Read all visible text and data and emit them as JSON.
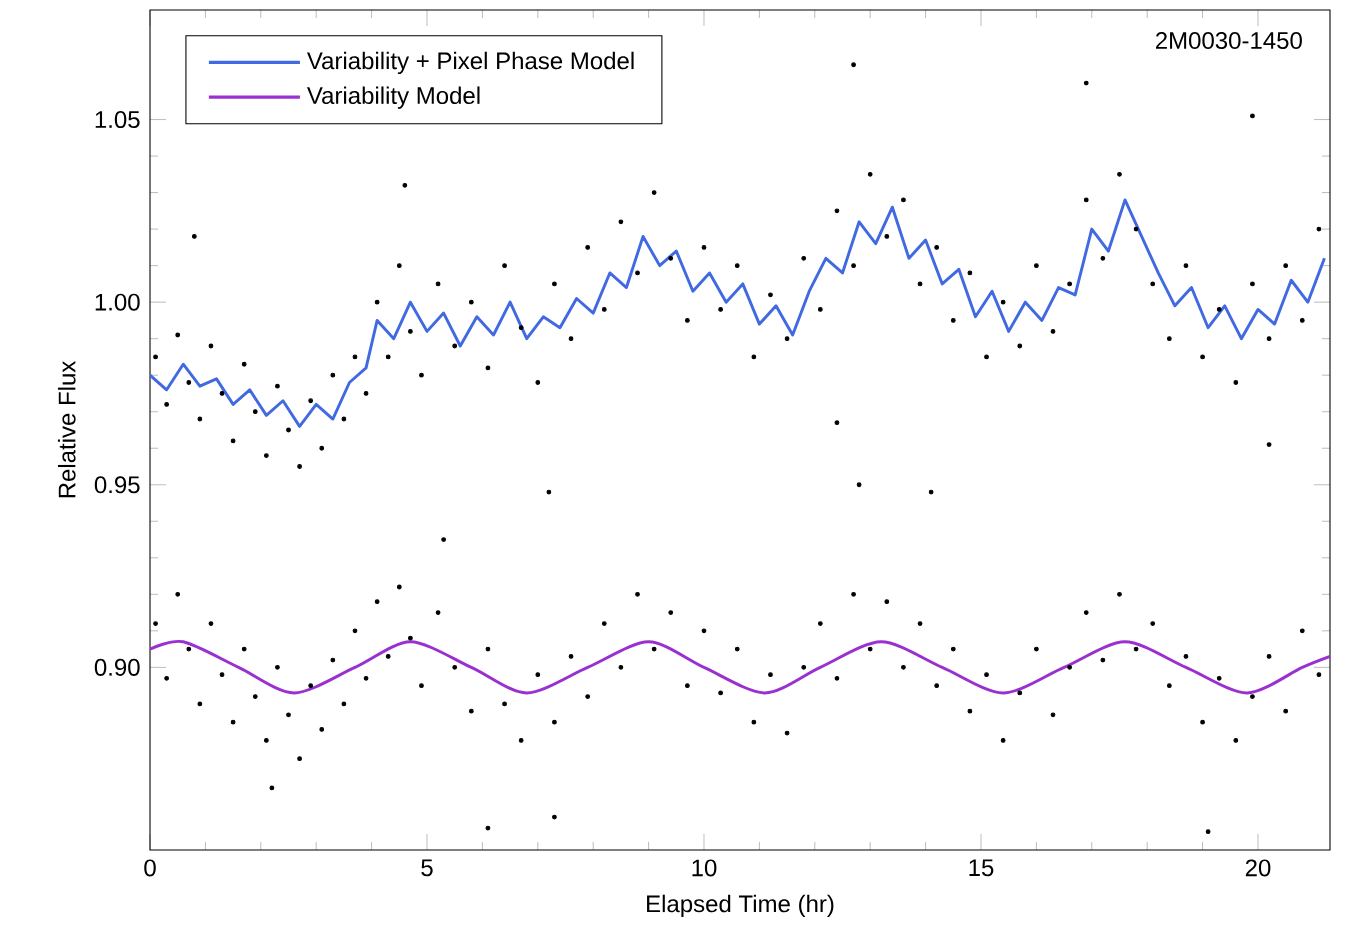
{
  "chart_data": {
    "type": "scatter",
    "xlabel": "Elapsed Time (hr)",
    "ylabel": "Relative Flux",
    "annotations": [
      "2M0030-1450"
    ],
    "xlim": [
      0,
      21.3
    ],
    "ylim": [
      0.85,
      1.08
    ],
    "xticks": [
      0,
      5,
      10,
      15,
      20
    ],
    "yticks": [
      {
        "value": 0.9,
        "label": "0.90"
      },
      {
        "value": 0.95,
        "label": "0.95"
      },
      {
        "value": 1.0,
        "label": "1.00"
      },
      {
        "value": 1.05,
        "label": "1.05"
      }
    ],
    "legend": "top left",
    "grid": false,
    "series": [
      {
        "color": "#000000",
        "marker": "circle",
        "x": [
          0.1,
          0.3,
          0.5,
          0.7,
          0.9,
          1.1,
          1.3,
          1.5,
          1.7,
          1.9,
          2.1,
          2.3,
          2.5,
          2.7,
          2.9,
          3.1,
          3.3,
          3.5,
          3.7,
          3.9,
          4.1,
          4.3,
          4.5,
          4.7,
          4.9,
          5.2,
          5.5,
          5.8,
          6.1,
          6.4,
          6.7,
          7.0,
          7.3,
          7.6,
          7.9,
          8.2,
          8.5,
          8.8,
          9.1,
          9.4,
          9.7,
          10.0,
          10.3,
          10.6,
          10.9,
          11.2,
          11.5,
          11.8,
          12.1,
          12.4,
          12.7,
          13.0,
          13.3,
          13.6,
          13.9,
          14.2,
          14.5,
          14.8,
          15.1,
          15.4,
          15.7,
          16.0,
          16.3,
          16.6,
          16.9,
          17.2,
          17.5,
          17.8,
          18.1,
          18.4,
          18.7,
          19.0,
          19.3,
          19.6,
          19.9,
          20.2,
          20.5,
          20.8,
          21.1,
          0.8,
          4.6,
          12.7,
          16.9,
          19.9,
          12.4,
          12.8,
          20.2
        ],
        "values": [
          0.985,
          0.972,
          0.991,
          0.978,
          0.968,
          0.988,
          0.975,
          0.962,
          0.983,
          0.97,
          0.958,
          0.977,
          0.965,
          0.955,
          0.973,
          0.96,
          0.98,
          0.968,
          0.985,
          0.975,
          1.0,
          0.985,
          1.01,
          0.992,
          0.98,
          1.005,
          0.988,
          1.0,
          0.982,
          1.01,
          0.993,
          0.978,
          1.005,
          0.99,
          1.015,
          0.998,
          1.022,
          1.008,
          1.03,
          1.012,
          0.995,
          1.015,
          0.998,
          1.01,
          0.985,
          1.002,
          0.99,
          1.012,
          0.998,
          1.025,
          1.01,
          1.035,
          1.018,
          1.028,
          1.005,
          1.015,
          0.995,
          1.008,
          0.985,
          1.0,
          0.988,
          1.01,
          0.992,
          1.005,
          1.028,
          1.012,
          1.035,
          1.02,
          1.005,
          0.99,
          1.01,
          0.985,
          0.998,
          0.978,
          1.005,
          0.99,
          1.01,
          0.995,
          1.02,
          1.018,
          1.032,
          1.065,
          1.06,
          1.051,
          0.967,
          0.95,
          0.961
        ]
      },
      {
        "color": "#000000",
        "marker": "circle",
        "x": [
          0.1,
          0.3,
          0.5,
          0.7,
          0.9,
          1.1,
          1.3,
          1.5,
          1.7,
          1.9,
          2.1,
          2.3,
          2.5,
          2.7,
          2.9,
          3.1,
          3.3,
          3.5,
          3.7,
          3.9,
          4.1,
          4.3,
          4.5,
          4.7,
          4.9,
          5.2,
          5.5,
          5.8,
          6.1,
          6.4,
          6.7,
          7.0,
          7.3,
          7.6,
          7.9,
          8.2,
          8.5,
          8.8,
          9.1,
          9.4,
          9.7,
          10.0,
          10.3,
          10.6,
          10.9,
          11.2,
          11.5,
          11.8,
          12.1,
          12.4,
          12.7,
          13.0,
          13.3,
          13.6,
          13.9,
          14.2,
          14.5,
          14.8,
          15.1,
          15.4,
          15.7,
          16.0,
          16.3,
          16.6,
          16.9,
          17.2,
          17.5,
          17.8,
          18.1,
          18.4,
          18.7,
          19.0,
          19.3,
          19.6,
          19.9,
          20.2,
          20.5,
          20.8,
          21.1,
          2.2,
          6.1,
          7.3,
          7.2,
          5.3,
          14.1,
          19.1
        ],
        "values": [
          0.912,
          0.897,
          0.92,
          0.905,
          0.89,
          0.912,
          0.898,
          0.885,
          0.905,
          0.892,
          0.88,
          0.9,
          0.887,
          0.875,
          0.895,
          0.883,
          0.902,
          0.89,
          0.91,
          0.897,
          0.918,
          0.903,
          0.922,
          0.908,
          0.895,
          0.915,
          0.9,
          0.888,
          0.905,
          0.89,
          0.88,
          0.898,
          0.885,
          0.903,
          0.892,
          0.912,
          0.9,
          0.92,
          0.905,
          0.915,
          0.895,
          0.91,
          0.893,
          0.905,
          0.885,
          0.898,
          0.882,
          0.9,
          0.912,
          0.897,
          0.92,
          0.905,
          0.918,
          0.9,
          0.912,
          0.895,
          0.905,
          0.888,
          0.898,
          0.88,
          0.893,
          0.905,
          0.887,
          0.9,
          0.915,
          0.902,
          0.92,
          0.905,
          0.912,
          0.895,
          0.903,
          0.885,
          0.897,
          0.88,
          0.892,
          0.903,
          0.888,
          0.91,
          0.898,
          0.867,
          0.856,
          0.859,
          0.948,
          0.935,
          0.948,
          0.855
        ]
      },
      {
        "type": "line",
        "name": "Variability + Pixel Phase Model",
        "color": "#4169e1",
        "marker": "none",
        "line_style": "solid",
        "x": [
          0,
          0.3,
          0.6,
          0.9,
          1.2,
          1.5,
          1.8,
          2.1,
          2.4,
          2.7,
          3.0,
          3.3,
          3.6,
          3.9,
          4.1,
          4.4,
          4.7,
          5.0,
          5.3,
          5.6,
          5.9,
          6.2,
          6.5,
          6.8,
          7.1,
          7.4,
          7.7,
          8.0,
          8.3,
          8.6,
          8.9,
          9.2,
          9.5,
          9.8,
          10.1,
          10.4,
          10.7,
          11.0,
          11.3,
          11.6,
          11.9,
          12.2,
          12.5,
          12.8,
          13.1,
          13.4,
          13.7,
          14.0,
          14.3,
          14.6,
          14.9,
          15.2,
          15.5,
          15.8,
          16.1,
          16.4,
          16.7,
          17.0,
          17.3,
          17.6,
          17.9,
          18.2,
          18.5,
          18.8,
          19.1,
          19.4,
          19.7,
          20.0,
          20.3,
          20.6,
          20.9,
          21.2
        ],
        "values": [
          0.98,
          0.976,
          0.983,
          0.977,
          0.979,
          0.972,
          0.976,
          0.969,
          0.973,
          0.966,
          0.972,
          0.968,
          0.978,
          0.982,
          0.995,
          0.99,
          1.0,
          0.992,
          0.997,
          0.988,
          0.996,
          0.991,
          1.0,
          0.99,
          0.996,
          0.993,
          1.001,
          0.997,
          1.008,
          1.004,
          1.018,
          1.01,
          1.014,
          1.003,
          1.008,
          1.0,
          1.005,
          0.994,
          0.999,
          0.991,
          1.003,
          1.012,
          1.008,
          1.022,
          1.016,
          1.026,
          1.012,
          1.017,
          1.005,
          1.009,
          0.996,
          1.003,
          0.992,
          1.0,
          0.995,
          1.004,
          1.002,
          1.02,
          1.014,
          1.028,
          1.018,
          1.008,
          0.999,
          1.004,
          0.993,
          0.999,
          0.99,
          0.998,
          0.994,
          1.006,
          1.0,
          1.012
        ]
      },
      {
        "type": "line",
        "name": "Variability Model",
        "color": "#9b30d0",
        "marker": "none",
        "line_style": "solid",
        "x": [
          0,
          0.6,
          1.6,
          2.6,
          3.7,
          4.7,
          5.8,
          6.8,
          7.9,
          9.0,
          10.0,
          11.1,
          12.1,
          13.2,
          14.3,
          15.4,
          16.5,
          17.6,
          18.7,
          19.8,
          20.8,
          21.3
        ],
        "values": [
          0.905,
          0.907,
          0.9,
          0.893,
          0.9,
          0.907,
          0.9,
          0.893,
          0.9,
          0.907,
          0.9,
          0.893,
          0.9,
          0.907,
          0.9,
          0.893,
          0.9,
          0.907,
          0.9,
          0.893,
          0.9,
          0.903
        ]
      }
    ]
  }
}
